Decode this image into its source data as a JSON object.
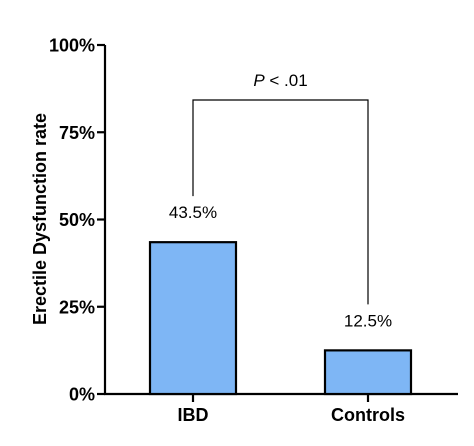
{
  "chart_data": {
    "type": "bar",
    "categories": [
      "IBD",
      "Controls"
    ],
    "values": [
      43.5,
      12.5
    ],
    "data_labels": [
      "43.5%",
      "12.5%"
    ],
    "title": "",
    "xlabel": "",
    "ylabel": "Erectile Dysfunction rate",
    "ylim": [
      0,
      100
    ],
    "yticks": [
      0,
      25,
      50,
      75,
      100
    ],
    "ytick_labels": [
      "0%",
      "25%",
      "50%",
      "75%",
      "100%"
    ],
    "grid": false,
    "legend": "none",
    "bar_color": "#7EB6F5",
    "bar_edge_color": "#000000",
    "annotations": [
      {
        "type": "significance-bracket",
        "between": [
          "IBD",
          "Controls"
        ],
        "label_prefix": "P",
        "label_rest": " < .01"
      }
    ]
  }
}
